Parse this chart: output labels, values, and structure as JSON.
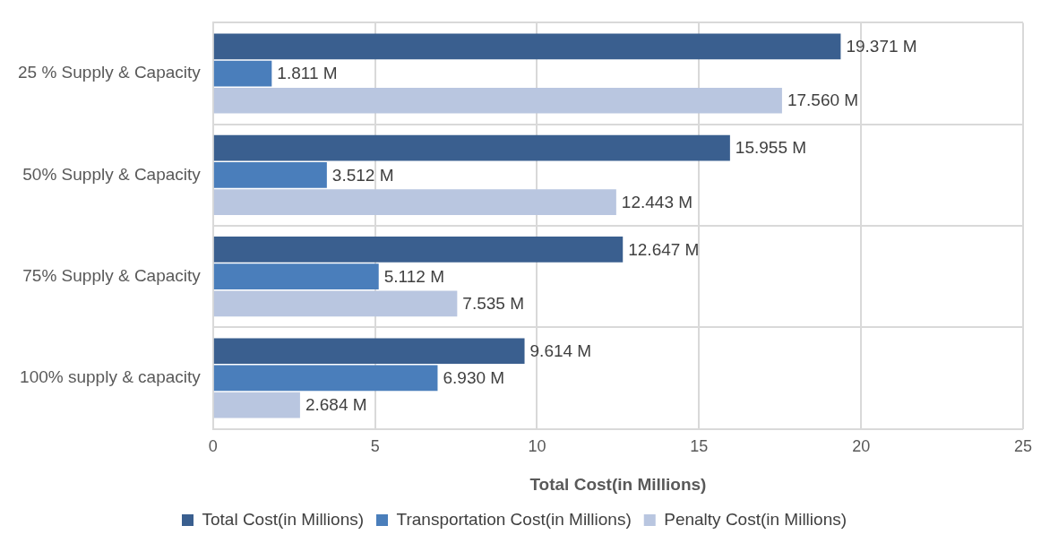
{
  "chart_data": {
    "type": "bar",
    "orientation": "horizontal",
    "xlabel": "Total Cost(in Millions)",
    "categories": [
      "25 % Supply & Capacity",
      "50% Supply & Capacity",
      "75% Supply & Capacity",
      "100% supply & capacity"
    ],
    "series": [
      {
        "name": "Total Cost(in Millions)",
        "color": "#3a5f8f",
        "values": [
          19.371,
          15.955,
          12.647,
          9.614
        ],
        "value_labels": [
          "19.371 M",
          "15.955 M",
          "12.647 M",
          "9.614 M"
        ]
      },
      {
        "name": "Transportation Cost(in Millions)",
        "color": "#4a7ebb",
        "values": [
          1.811,
          3.512,
          5.112,
          6.93
        ],
        "value_labels": [
          "1.811 M",
          "3.512 M",
          "5.112 M",
          "6.930 M"
        ]
      },
      {
        "name": "Penalty Cost(in Millions)",
        "color": "#b9c6e0",
        "values": [
          17.56,
          12.443,
          7.535,
          2.684
        ],
        "value_labels": [
          "17.560 M",
          "12.443 M",
          "7.535 M",
          "2.684 M"
        ]
      }
    ],
    "xlim": [
      0,
      25
    ],
    "xticks": [
      0,
      5,
      10,
      15,
      20,
      25
    ],
    "grid": true,
    "legend": "bottom"
  }
}
